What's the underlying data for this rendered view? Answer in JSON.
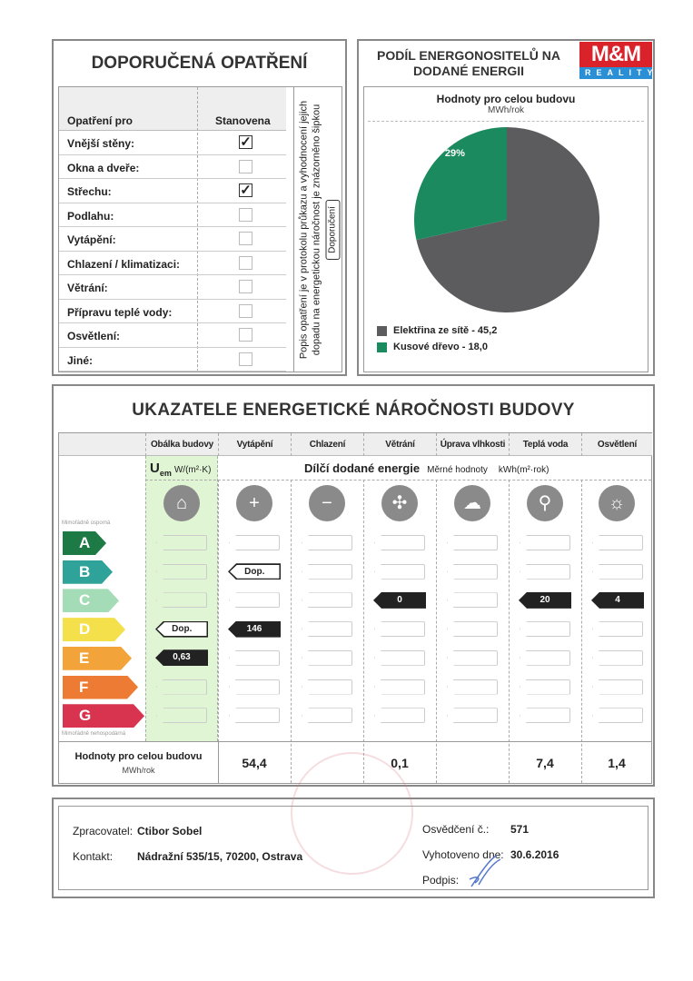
{
  "measures": {
    "title": "DOPORUČENÁ OPATŘENÍ",
    "col_measure": "Opatření pro",
    "col_set": "Stanovena",
    "rows": [
      {
        "label": "Vnější stěny:",
        "checked": true
      },
      {
        "label": "Okna a dveře:",
        "checked": false
      },
      {
        "label": "Střechu:",
        "checked": true
      },
      {
        "label": "Podlahu:",
        "checked": false
      },
      {
        "label": "Vytápění:",
        "checked": false
      },
      {
        "label": "Chlazení / klimatizaci:",
        "checked": false
      },
      {
        "label": "Větrání:",
        "checked": false
      },
      {
        "label": "Přípravu teplé vody:",
        "checked": false
      },
      {
        "label": "Osvětlení:",
        "checked": false
      },
      {
        "label": "Jiné:",
        "checked": false
      }
    ],
    "note": "Popis opatření je v protokolu průkazu a vyhodnocení jejich dopadu na energetickou náročnost je znázorněno šipkou",
    "note_arrow": "Doporučení"
  },
  "share": {
    "title": "PODÍL ENERGONOSITELŮ NA DODANÉ ENERGII",
    "subtitle": "Hodnoty pro celou budovu",
    "unit": "MWh/rok",
    "chart_data": {
      "type": "pie",
      "slices": [
        {
          "name": "Elektřina ze sítě - 45,2",
          "value": 45.2,
          "percent": "71%",
          "color": "#5c5c5f"
        },
        {
          "name": "Kusové dřevo - 18,0",
          "value": 18.0,
          "percent": "29%",
          "color": "#1b8a5f"
        }
      ]
    }
  },
  "logo": {
    "top": "M&M",
    "bottom": "REALITY"
  },
  "indicators": {
    "title": "UKAZATELE ENERGETICKÉ NÁROČNOSTI BUDOVY",
    "columns": [
      "Obálka budovy",
      "Vytápění",
      "Chlazení",
      "Větrání",
      "Úprava vlhkosti",
      "Teplá voda",
      "Osvětlení"
    ],
    "uem": "U",
    "uem_sub": "em",
    "uem_unit": "W/(m²·K)",
    "partial": "Dílčí dodané energie",
    "specific": "Měrné hodnoty",
    "specific_unit": "kWh(m²·rok)",
    "best": "Mimořádně úsporná",
    "worst": "Mimořádně nehospodárná",
    "classes": [
      {
        "letter": "A",
        "color": "#1e7a45"
      },
      {
        "letter": "B",
        "color": "#2fa39a"
      },
      {
        "letter": "C",
        "color": "#a3dcb7"
      },
      {
        "letter": "D",
        "color": "#f3e04a"
      },
      {
        "letter": "E",
        "color": "#f2a33a"
      },
      {
        "letter": "F",
        "color": "#ee7b33"
      },
      {
        "letter": "G",
        "color": "#d8344f"
      }
    ],
    "icons": [
      "house-icon",
      "thermometer-plus-icon",
      "thermometer-minus-icon",
      "fan-icon",
      "humidity-icon",
      "tap-icon",
      "bulb-icon"
    ],
    "marks": [
      {
        "col": 0,
        "cls": "D",
        "text": "Dop.",
        "style": "outline"
      },
      {
        "col": 0,
        "cls": "E",
        "text": "0,63",
        "style": "dark"
      },
      {
        "col": 1,
        "cls": "B",
        "text": "Dop.",
        "style": "outline"
      },
      {
        "col": 1,
        "cls": "D",
        "text": "146",
        "style": "dark"
      },
      {
        "col": 3,
        "cls": "C",
        "text": "0",
        "style": "dark"
      },
      {
        "col": 5,
        "cls": "C",
        "text": "20",
        "style": "dark"
      },
      {
        "col": 6,
        "cls": "C",
        "text": "4",
        "style": "dark"
      }
    ],
    "totals_label": "Hodnoty pro celou budovu",
    "totals_unit": "MWh/rok",
    "totals": [
      "",
      "54,4",
      "",
      "0,1",
      "",
      "7,4",
      "1,4"
    ]
  },
  "footer": {
    "processor_label": "Zpracovatel:",
    "processor": "Ctibor Sobel",
    "contact_label": "Kontakt:",
    "contact": "Nádražní 535/15, 70200, Ostrava",
    "cert_label": "Osvědčení č.:",
    "cert": "571",
    "date_label": "Vyhotoveno dne:",
    "date": "30.6.2016",
    "sign_label": "Podpis:"
  }
}
